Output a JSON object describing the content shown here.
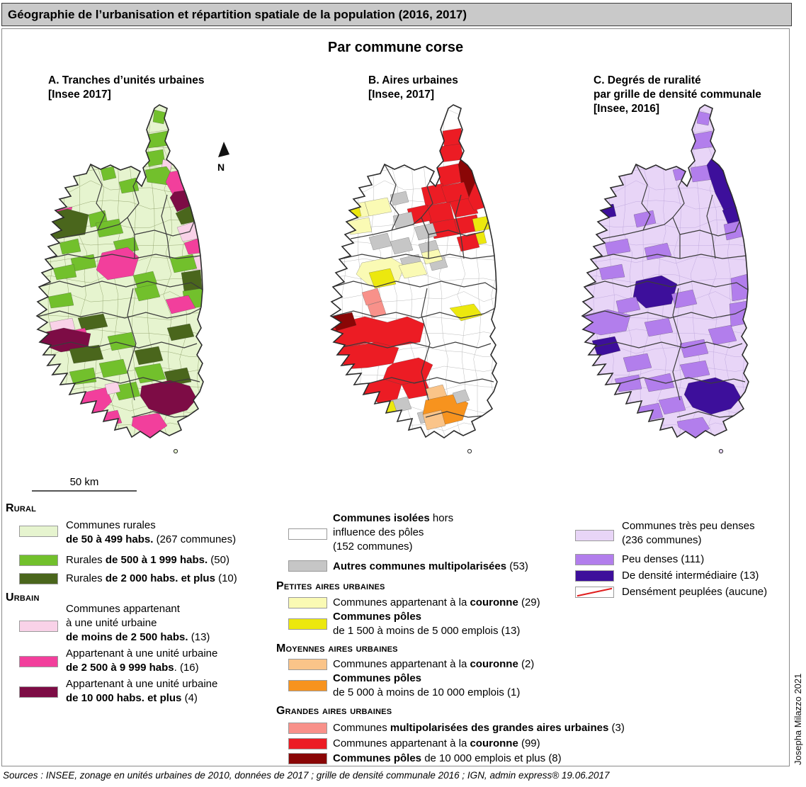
{
  "header": {
    "title": "Géographie de l’urbanisation et répartition spatiale de la population (2016, 2017)"
  },
  "subtitle": "Par commune corse",
  "maps": {
    "a": {
      "t1": "A. Tranches d’unités urbaines",
      "t2": "[Insee 2017]"
    },
    "b": {
      "t1": "B. Aires urbaines",
      "t2": "[Insee, 2017]"
    },
    "c": {
      "t1": "C. Degrés de ruralité",
      "t2": "par grille de densité communale",
      "t3": "[Insee, 2016]"
    }
  },
  "north_label": "N",
  "scale_label": "50 km",
  "legend_a": {
    "heading_rural": "Rural",
    "heading_urbain": "Urbain",
    "a0": {
      "l1": "Communes rurales",
      "l2b": "de 50 à 499 habs.",
      "l2r": " (267 communes)"
    },
    "a1": {
      "pre": "Rurales ",
      "bold": "de 500 à 1 999 habs.",
      "rest": " (50)"
    },
    "a2": {
      "pre": "Rurales ",
      "bold": "de 2 000 habs. et plus",
      "rest": " (10)"
    },
    "a3": {
      "l1": "Communes appartenant",
      "l2": "à une unité urbaine",
      "l3b": "de moins de 2 500 habs.",
      "l3r": " (13)"
    },
    "a4": {
      "l1": "Appartenant à une unité urbaine",
      "l2b": "de 2 500 à 9 999 habs",
      "l2r": ". (16)"
    },
    "a5": {
      "l1": "Appartenant à une unité urbaine",
      "l2b": "de 10 000 habs. et plus",
      "l2r": " (4)"
    }
  },
  "legend_b": {
    "b0": {
      "l1b": "Communes isolées",
      "l1r": " hors",
      "l2": "influence des pôles",
      "l3": "(152 communes)"
    },
    "b1": {
      "bold": "Autres communes multipolarisées",
      "rest": " (53)"
    },
    "h_petites": "Petites aires urbaines",
    "b2": {
      "pre": "Communes appartenant à la ",
      "bold": "couronne",
      "rest": " (29)"
    },
    "b3": {
      "l1b": "Communes pôles",
      "l2": "de 1 500 à moins de 5 000 emplois (13)"
    },
    "h_moyennes": "Moyennes aires urbaines",
    "b4": {
      "pre": "Communes appartenant à la ",
      "bold": "couronne",
      "rest": " (2)"
    },
    "b5": {
      "l1b": "Communes pôles",
      "l2": "de 5 000 à moins de 10 000 emplois (1)"
    },
    "h_grandes": "Grandes aires urbaines",
    "b6": {
      "pre": "Communes ",
      "bold": "multipolarisées des grandes aires urbaines",
      "rest": " (3)"
    },
    "b7": {
      "pre": "Communes appartenant à la ",
      "bold": "couronne",
      "rest": " (99)"
    },
    "b8": {
      "boldpre": "Communes pôles",
      "rest": " de 10 000 emplois et plus (8)"
    }
  },
  "legend_c": {
    "c0": {
      "l1": "Communes très peu denses",
      "l2": "(236 communes)"
    },
    "c1": "Peu denses (111)",
    "c2": "De densité intermédiaire (13)",
    "c3": "Densément peuplées (aucune)"
  },
  "credit": "Josepha Milazzo 2021",
  "sources": "Sources : INSEE, zonage en unités urbaines de 2010, données de 2017 ; grille de densité communale 2016 ; IGN, admin express® 19.06.2017",
  "colors": {
    "paleGreen": "#e6f4cf",
    "green": "#72c02c",
    "darkGreen": "#4a661c",
    "palePink": "#f9d2e8",
    "pink": "#f23f9c",
    "maroon": "#7d0c45",
    "white": "#ffffff",
    "gray": "#c6c6c6",
    "paleYellow": "#fafab4",
    "yellow": "#ece80e",
    "paleOrange": "#fac489",
    "orange": "#f7931e",
    "salmon": "#f8918a",
    "red": "#ec1c24",
    "darkRed": "#8a0606",
    "paleViolet": "#e8d5f7",
    "violet": "#b27eec",
    "indigo": "#3d0f9b",
    "titleBarBg": "#c9c9c9",
    "hatchRed": "#e02020",
    "lineA": "#8fa06a",
    "lineB": "#b3b3b3",
    "lineC": "#bda6dd"
  }
}
